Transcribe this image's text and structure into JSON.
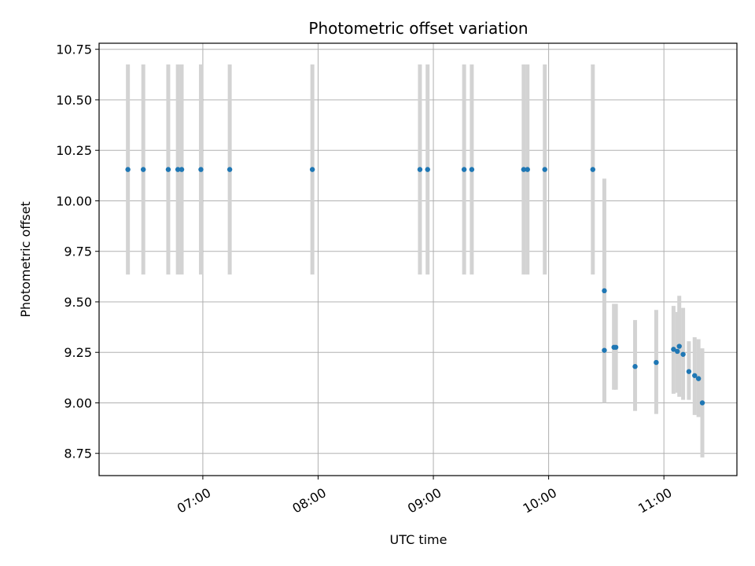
{
  "chart_data": {
    "type": "scatter",
    "title": "Photometric offset variation",
    "xlabel": "UTC time",
    "ylabel": "Photometric offset",
    "x_axis": {
      "kind": "time",
      "range": [
        "06:06",
        "11:38"
      ],
      "ticks": [
        "07:00",
        "08:00",
        "09:00",
        "10:00",
        "11:00"
      ]
    },
    "y_axis": {
      "range": [
        8.64,
        10.78
      ],
      "ticks": [
        "8.75",
        "9.00",
        "9.25",
        "9.50",
        "9.75",
        "10.00",
        "10.25",
        "10.50",
        "10.75"
      ]
    },
    "grid": true,
    "colors": {
      "point": "#1f77b4",
      "errorbar": "#d3d3d3",
      "grid": "#b0b0b0"
    },
    "points": [
      {
        "t": "06:21",
        "y": 10.155,
        "lo": 9.635,
        "hi": 10.675
      },
      {
        "t": "06:29",
        "y": 10.155,
        "lo": 9.635,
        "hi": 10.675
      },
      {
        "t": "06:42",
        "y": 10.155,
        "lo": 9.635,
        "hi": 10.675
      },
      {
        "t": "06:47",
        "y": 10.155,
        "lo": 9.635,
        "hi": 10.675
      },
      {
        "t": "06:49",
        "y": 10.155,
        "lo": 9.635,
        "hi": 10.675
      },
      {
        "t": "06:59",
        "y": 10.155,
        "lo": 9.635,
        "hi": 10.675
      },
      {
        "t": "07:14",
        "y": 10.155,
        "lo": 9.635,
        "hi": 10.675
      },
      {
        "t": "07:57",
        "y": 10.155,
        "lo": 9.635,
        "hi": 10.675
      },
      {
        "t": "08:53",
        "y": 10.155,
        "lo": 9.635,
        "hi": 10.675
      },
      {
        "t": "08:57",
        "y": 10.155,
        "lo": 9.635,
        "hi": 10.675
      },
      {
        "t": "09:16",
        "y": 10.155,
        "lo": 9.635,
        "hi": 10.675
      },
      {
        "t": "09:20",
        "y": 10.155,
        "lo": 9.635,
        "hi": 10.675
      },
      {
        "t": "09:47",
        "y": 10.155,
        "lo": 9.635,
        "hi": 10.675
      },
      {
        "t": "09:49",
        "y": 10.155,
        "lo": 9.635,
        "hi": 10.675
      },
      {
        "t": "09:58",
        "y": 10.155,
        "lo": 9.635,
        "hi": 10.675
      },
      {
        "t": "10:23",
        "y": 10.155,
        "lo": 9.635,
        "hi": 10.675
      },
      {
        "t": "10:29",
        "y": 9.555,
        "lo": 9.0,
        "hi": 10.11
      },
      {
        "t": "10:29",
        "y": 9.26,
        "lo": 9.0,
        "hi": 9.45
      },
      {
        "t": "10:34",
        "y": 9.275,
        "lo": 9.065,
        "hi": 9.49
      },
      {
        "t": "10:35",
        "y": 9.275,
        "lo": 9.065,
        "hi": 9.49
      },
      {
        "t": "10:45",
        "y": 9.18,
        "lo": 8.96,
        "hi": 9.41
      },
      {
        "t": "10:56",
        "y": 9.2,
        "lo": 8.945,
        "hi": 9.46
      },
      {
        "t": "11:05",
        "y": 9.265,
        "lo": 9.045,
        "hi": 9.48
      },
      {
        "t": "11:07",
        "y": 9.255,
        "lo": 9.05,
        "hi": 9.45
      },
      {
        "t": "11:08",
        "y": 9.28,
        "lo": 9.03,
        "hi": 9.53
      },
      {
        "t": "11:10",
        "y": 9.24,
        "lo": 9.015,
        "hi": 9.47
      },
      {
        "t": "11:13",
        "y": 9.155,
        "lo": 9.015,
        "hi": 9.305
      },
      {
        "t": "11:16",
        "y": 9.135,
        "lo": 8.94,
        "hi": 9.325
      },
      {
        "t": "11:18",
        "y": 9.12,
        "lo": 8.93,
        "hi": 9.315
      },
      {
        "t": "11:20",
        "y": 9.0,
        "lo": 8.73,
        "hi": 9.27
      }
    ]
  }
}
